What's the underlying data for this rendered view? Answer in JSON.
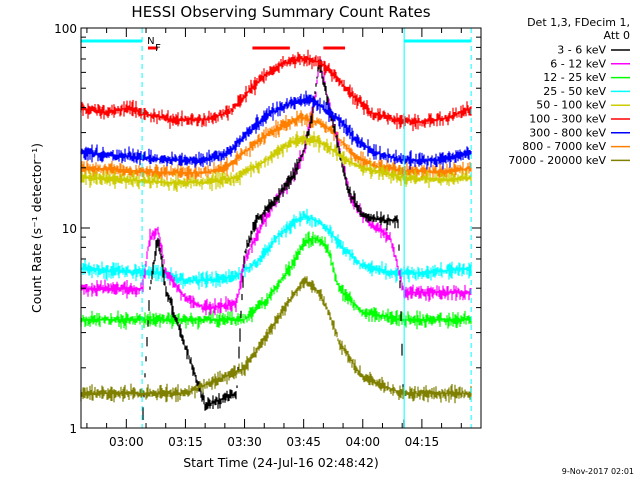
{
  "chart_data": {
    "type": "line",
    "title": "HESSI Observing Summary Count Rates",
    "xlabel": "Start Time (24-Jul-16 02:48:42)",
    "ylabel": "Count Rate (s⁻¹ detector⁻¹)",
    "yscale": "log",
    "ylim": [
      1,
      100
    ],
    "xlim_minutes_after_0300": [
      -11.5,
      90
    ],
    "x_ticks": [
      "03:00",
      "03:15",
      "03:30",
      "03:45",
      "04:00",
      "04:15"
    ],
    "y_ticks": [
      "1",
      "10",
      "100"
    ],
    "legend_header": [
      "Det 1,3, FDecim 1,",
      "Att 0"
    ],
    "legend_placement": "right",
    "footer": "9-Nov-2017 02:01",
    "flags": [
      {
        "label": "N",
        "color": "#00ffff",
        "segments": [
          [
            -11.5,
            4.0
          ],
          [
            70.5,
            87.5
          ]
        ]
      },
      {
        "label": "F",
        "color": "#ff0000",
        "segments": [
          [
            5.5,
            8.0
          ],
          [
            32.0,
            41.5
          ],
          [
            50.0,
            55.5
          ]
        ]
      }
    ],
    "vertical_markers": [
      {
        "x": 4.0,
        "color": "#00ffff",
        "style": "dashed"
      },
      {
        "x": 70.5,
        "color": "#00ffff",
        "style": "solid"
      },
      {
        "x": 87.5,
        "color": "#00ffff",
        "style": "dashed"
      }
    ],
    "series": [
      {
        "name": "3 - 6 keV",
        "color": "#000000",
        "points": [
          [
            -11.5,
            1.0
          ],
          [
            4.0,
            1.0
          ],
          [
            6.0,
            5.0
          ],
          [
            8.0,
            9.0
          ],
          [
            10.0,
            5.0
          ],
          [
            20.0,
            1.3
          ],
          [
            28.0,
            1.5
          ],
          [
            30.0,
            7.5
          ],
          [
            33.0,
            11.0
          ],
          [
            38.0,
            14.0
          ],
          [
            42.0,
            18.0
          ],
          [
            45.0,
            24.0
          ],
          [
            47.0,
            35.0
          ],
          [
            49.0,
            70.0
          ],
          [
            50.0,
            55.0
          ],
          [
            53.0,
            30.0
          ],
          [
            56.0,
            16.0
          ],
          [
            60.0,
            11.5
          ],
          [
            65.0,
            11.0
          ],
          [
            69.0,
            11.0
          ],
          [
            70.5,
            1.0
          ],
          [
            87.5,
            1.0
          ]
        ]
      },
      {
        "name": "6 - 12 keV",
        "color": "#ff00ff",
        "points": [
          [
            -11.5,
            5.0
          ],
          [
            4.0,
            5.0
          ],
          [
            6.0,
            9.0
          ],
          [
            8.0,
            10.0
          ],
          [
            10.0,
            6.0
          ],
          [
            15.0,
            4.5
          ],
          [
            20.0,
            4.0
          ],
          [
            28.0,
            4.2
          ],
          [
            30.0,
            7.0
          ],
          [
            34.0,
            10.0
          ],
          [
            38.0,
            14.0
          ],
          [
            42.0,
            18.0
          ],
          [
            45.0,
            24.0
          ],
          [
            48.0,
            45.0
          ],
          [
            49.0,
            70.0
          ],
          [
            51.0,
            45.0
          ],
          [
            54.0,
            25.0
          ],
          [
            57.0,
            14.0
          ],
          [
            62.0,
            10.5
          ],
          [
            67.0,
            9.0
          ],
          [
            70.5,
            4.8
          ],
          [
            87.5,
            4.8
          ]
        ]
      },
      {
        "name": "12 - 25 keV",
        "color": "#00ff00",
        "points": [
          [
            -11.5,
            3.5
          ],
          [
            15.0,
            3.5
          ],
          [
            30.0,
            3.5
          ],
          [
            36.0,
            4.5
          ],
          [
            42.0,
            6.5
          ],
          [
            45.0,
            8.5
          ],
          [
            48.0,
            9.0
          ],
          [
            51.0,
            8.0
          ],
          [
            54.0,
            5.0
          ],
          [
            60.0,
            3.8
          ],
          [
            70.0,
            3.5
          ],
          [
            87.5,
            3.5
          ]
        ]
      },
      {
        "name": "25 - 50 keV",
        "color": "#00ffff",
        "points": [
          [
            -11.5,
            6.3
          ],
          [
            4.0,
            6.0
          ],
          [
            8.0,
            6.0
          ],
          [
            15.0,
            5.5
          ],
          [
            22.0,
            5.5
          ],
          [
            28.0,
            5.8
          ],
          [
            34.0,
            7.0
          ],
          [
            38.0,
            9.0
          ],
          [
            42.0,
            10.5
          ],
          [
            45.0,
            11.5
          ],
          [
            48.0,
            11.0
          ],
          [
            51.0,
            10.0
          ],
          [
            55.0,
            8.0
          ],
          [
            60.0,
            6.5
          ],
          [
            67.0,
            6.0
          ],
          [
            75.0,
            6.0
          ],
          [
            87.5,
            6.3
          ]
        ]
      },
      {
        "name": "50 - 100 keV",
        "color": "#cccc00",
        "points": [
          [
            -11.5,
            18.0
          ],
          [
            0.0,
            17.5
          ],
          [
            10.0,
            17.0
          ],
          [
            20.0,
            17.0
          ],
          [
            28.0,
            18.0
          ],
          [
            34.0,
            21.0
          ],
          [
            38.0,
            24.0
          ],
          [
            42.0,
            27.0
          ],
          [
            45.0,
            28.0
          ],
          [
            48.0,
            27.5
          ],
          [
            52.0,
            25.0
          ],
          [
            56.0,
            22.0
          ],
          [
            60.0,
            20.0
          ],
          [
            70.0,
            18.0
          ],
          [
            80.0,
            17.5
          ],
          [
            87.5,
            18.0
          ]
        ]
      },
      {
        "name": "100 - 300 keV",
        "color": "#ff0000",
        "points": [
          [
            -11.5,
            40.0
          ],
          [
            -5.0,
            38.0
          ],
          [
            0.0,
            40.0
          ],
          [
            6.0,
            37.0
          ],
          [
            12.0,
            35.0
          ],
          [
            20.0,
            35.0
          ],
          [
            26.0,
            38.0
          ],
          [
            30.0,
            46.0
          ],
          [
            35.0,
            58.0
          ],
          [
            40.0,
            67.0
          ],
          [
            44.0,
            71.0
          ],
          [
            47.0,
            70.0
          ],
          [
            50.0,
            66.0
          ],
          [
            53.0,
            58.0
          ],
          [
            57.0,
            47.0
          ],
          [
            62.0,
            38.0
          ],
          [
            68.0,
            35.0
          ],
          [
            75.0,
            34.0
          ],
          [
            82.0,
            36.0
          ],
          [
            87.5,
            40.0
          ]
        ]
      },
      {
        "name": "300 - 800 keV",
        "color": "#0000ff",
        "points": [
          [
            -11.5,
            24.0
          ],
          [
            0.0,
            23.0
          ],
          [
            10.0,
            22.0
          ],
          [
            20.0,
            22.0
          ],
          [
            26.0,
            24.0
          ],
          [
            30.0,
            29.0
          ],
          [
            35.0,
            36.0
          ],
          [
            40.0,
            41.0
          ],
          [
            44.0,
            44.0
          ],
          [
            47.0,
            44.0
          ],
          [
            50.0,
            40.0
          ],
          [
            54.0,
            35.0
          ],
          [
            58.0,
            28.0
          ],
          [
            63.0,
            24.0
          ],
          [
            70.0,
            22.0
          ],
          [
            80.0,
            22.0
          ],
          [
            87.5,
            24.0
          ]
        ]
      },
      {
        "name": "800 - 7000 keV",
        "color": "#ff8000",
        "points": [
          [
            -11.5,
            20.0
          ],
          [
            0.0,
            19.5
          ],
          [
            10.0,
            19.0
          ],
          [
            20.0,
            19.0
          ],
          [
            26.0,
            20.5
          ],
          [
            30.0,
            24.0
          ],
          [
            35.0,
            29.0
          ],
          [
            40.0,
            33.0
          ],
          [
            44.0,
            36.0
          ],
          [
            47.0,
            35.0
          ],
          [
            50.0,
            33.0
          ],
          [
            54.0,
            28.0
          ],
          [
            58.0,
            23.0
          ],
          [
            63.0,
            20.5
          ],
          [
            70.0,
            19.5
          ],
          [
            80.0,
            19.0
          ],
          [
            87.5,
            20.0
          ]
        ]
      },
      {
        "name": "7000 - 20000 keV",
        "color": "#808000",
        "points": [
          [
            -11.5,
            1.5
          ],
          [
            15.0,
            1.5
          ],
          [
            30.0,
            2.0
          ],
          [
            36.0,
            3.0
          ],
          [
            42.0,
            4.5
          ],
          [
            45.0,
            5.5
          ],
          [
            48.0,
            5.0
          ],
          [
            51.0,
            4.0
          ],
          [
            54.0,
            2.7
          ],
          [
            60.0,
            1.8
          ],
          [
            70.0,
            1.5
          ],
          [
            87.5,
            1.5
          ]
        ]
      }
    ]
  }
}
